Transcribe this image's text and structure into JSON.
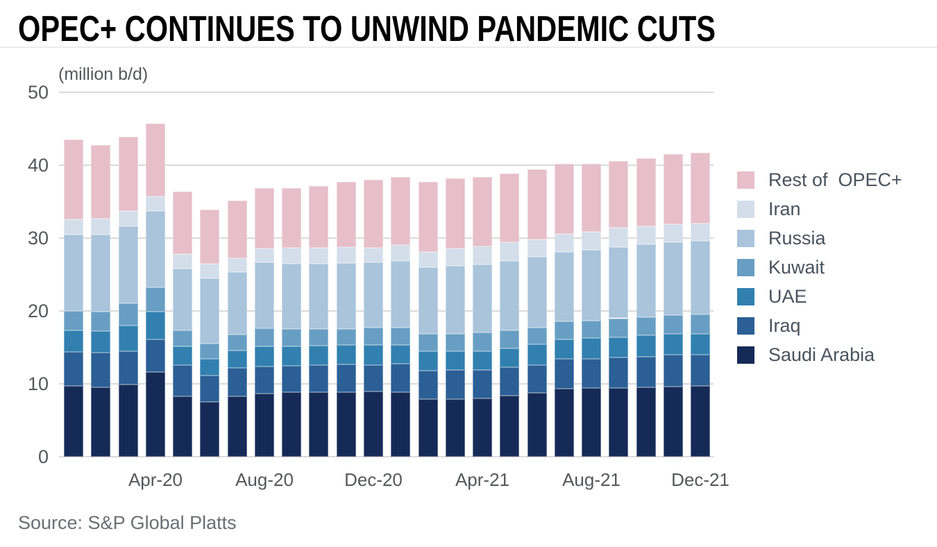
{
  "header": {
    "title": "OPEC+ CONTINUES TO UNWIND PANDEMIC CUTS"
  },
  "footer": {
    "source": "Source: S&P Global Platts"
  },
  "chart_data": {
    "type": "bar",
    "stacked": true,
    "title": "OPEC+ CONTINUES TO UNWIND PANDEMIC CUTS",
    "unit_label": "(million b/d)",
    "xlabel": "",
    "ylabel": "(million b/d)",
    "ylim": [
      0,
      50
    ],
    "grid": "horizontal",
    "legend_position": "right",
    "categories": [
      "Jan-20",
      "Feb-20",
      "Mar-20",
      "Apr-20",
      "May-20",
      "Jun-20",
      "Jul-20",
      "Aug-20",
      "Sep-20",
      "Oct-20",
      "Nov-20",
      "Dec-20",
      "Jan-21",
      "Feb-21",
      "Mar-21",
      "Apr-21",
      "May-21",
      "Jun-21",
      "Jul-21",
      "Aug-21",
      "Sep-21",
      "Oct-21",
      "Nov-21",
      "Dec-21"
    ],
    "x_ticks": [
      {
        "index": 3,
        "label": "Apr-20"
      },
      {
        "index": 7,
        "label": "Aug-20"
      },
      {
        "index": 11,
        "label": "Dec-20"
      },
      {
        "index": 15,
        "label": "Apr-21"
      },
      {
        "index": 19,
        "label": "Aug-21"
      },
      {
        "index": 23,
        "label": "Dec-21"
      }
    ],
    "y_axis": {
      "min": 0,
      "max": 50,
      "step": 10,
      "ticks": [
        0,
        10,
        20,
        30,
        40,
        50
      ]
    },
    "series": [
      {
        "name": "Saudi Arabia",
        "label": "Saudi Arabia",
        "color": "#152a56",
        "values": [
          9.7,
          9.5,
          9.9,
          11.6,
          8.3,
          7.5,
          8.3,
          8.7,
          8.9,
          8.9,
          8.9,
          8.95,
          8.9,
          7.9,
          7.9,
          8.0,
          8.4,
          8.8,
          9.35,
          9.4,
          9.45,
          9.5,
          9.6,
          9.7
        ]
      },
      {
        "name": "Iraq",
        "label": "Iraq",
        "color": "#2b5f95",
        "values": [
          4.7,
          4.8,
          4.6,
          4.5,
          4.3,
          3.6,
          3.85,
          3.7,
          3.6,
          3.7,
          3.75,
          3.6,
          3.85,
          3.9,
          4.0,
          3.9,
          3.9,
          3.8,
          4.05,
          4.0,
          4.15,
          4.25,
          4.4,
          4.3
        ]
      },
      {
        "name": "UAE",
        "label": "UAE",
        "color": "#3180af",
        "values": [
          2.9,
          2.9,
          3.5,
          3.8,
          2.55,
          2.35,
          2.4,
          2.75,
          2.6,
          2.6,
          2.7,
          2.75,
          2.6,
          2.7,
          2.6,
          2.6,
          2.6,
          2.8,
          2.7,
          2.9,
          2.8,
          2.95,
          2.9,
          2.9
        ]
      },
      {
        "name": "Kuwait",
        "label": "Kuwait",
        "color": "#689ec3",
        "values": [
          2.7,
          2.7,
          3.0,
          3.3,
          2.15,
          2.1,
          2.2,
          2.45,
          2.4,
          2.3,
          2.2,
          2.4,
          2.4,
          2.4,
          2.4,
          2.5,
          2.4,
          2.3,
          2.5,
          2.4,
          2.6,
          2.4,
          2.5,
          2.6
        ]
      },
      {
        "name": "Russia",
        "label": "Russia",
        "color": "#a9c4db",
        "values": [
          10.5,
          10.6,
          10.6,
          10.5,
          8.5,
          8.9,
          8.6,
          9.1,
          9.0,
          8.95,
          9.0,
          9.0,
          9.1,
          9.1,
          9.3,
          9.4,
          9.6,
          9.7,
          9.5,
          9.7,
          9.8,
          10.0,
          10.0,
          10.1
        ]
      },
      {
        "name": "Iran",
        "label": "Iran",
        "color": "#d3deea",
        "values": [
          2.1,
          2.2,
          2.1,
          2.0,
          2.0,
          2.0,
          1.9,
          1.9,
          2.2,
          2.2,
          2.2,
          2.0,
          2.2,
          2.1,
          2.4,
          2.5,
          2.5,
          2.4,
          2.5,
          2.5,
          2.6,
          2.5,
          2.5,
          2.4
        ]
      },
      {
        "name": "Rest of OPEC+",
        "label": "Rest of  OPEC+",
        "color": "#e6bfcb",
        "values": [
          10.9,
          10.1,
          10.2,
          10.0,
          8.6,
          7.5,
          7.9,
          8.3,
          8.2,
          8.5,
          9.0,
          9.3,
          9.35,
          9.6,
          9.6,
          9.5,
          9.5,
          9.6,
          9.6,
          9.3,
          9.2,
          9.4,
          9.6,
          9.7
        ]
      }
    ]
  }
}
